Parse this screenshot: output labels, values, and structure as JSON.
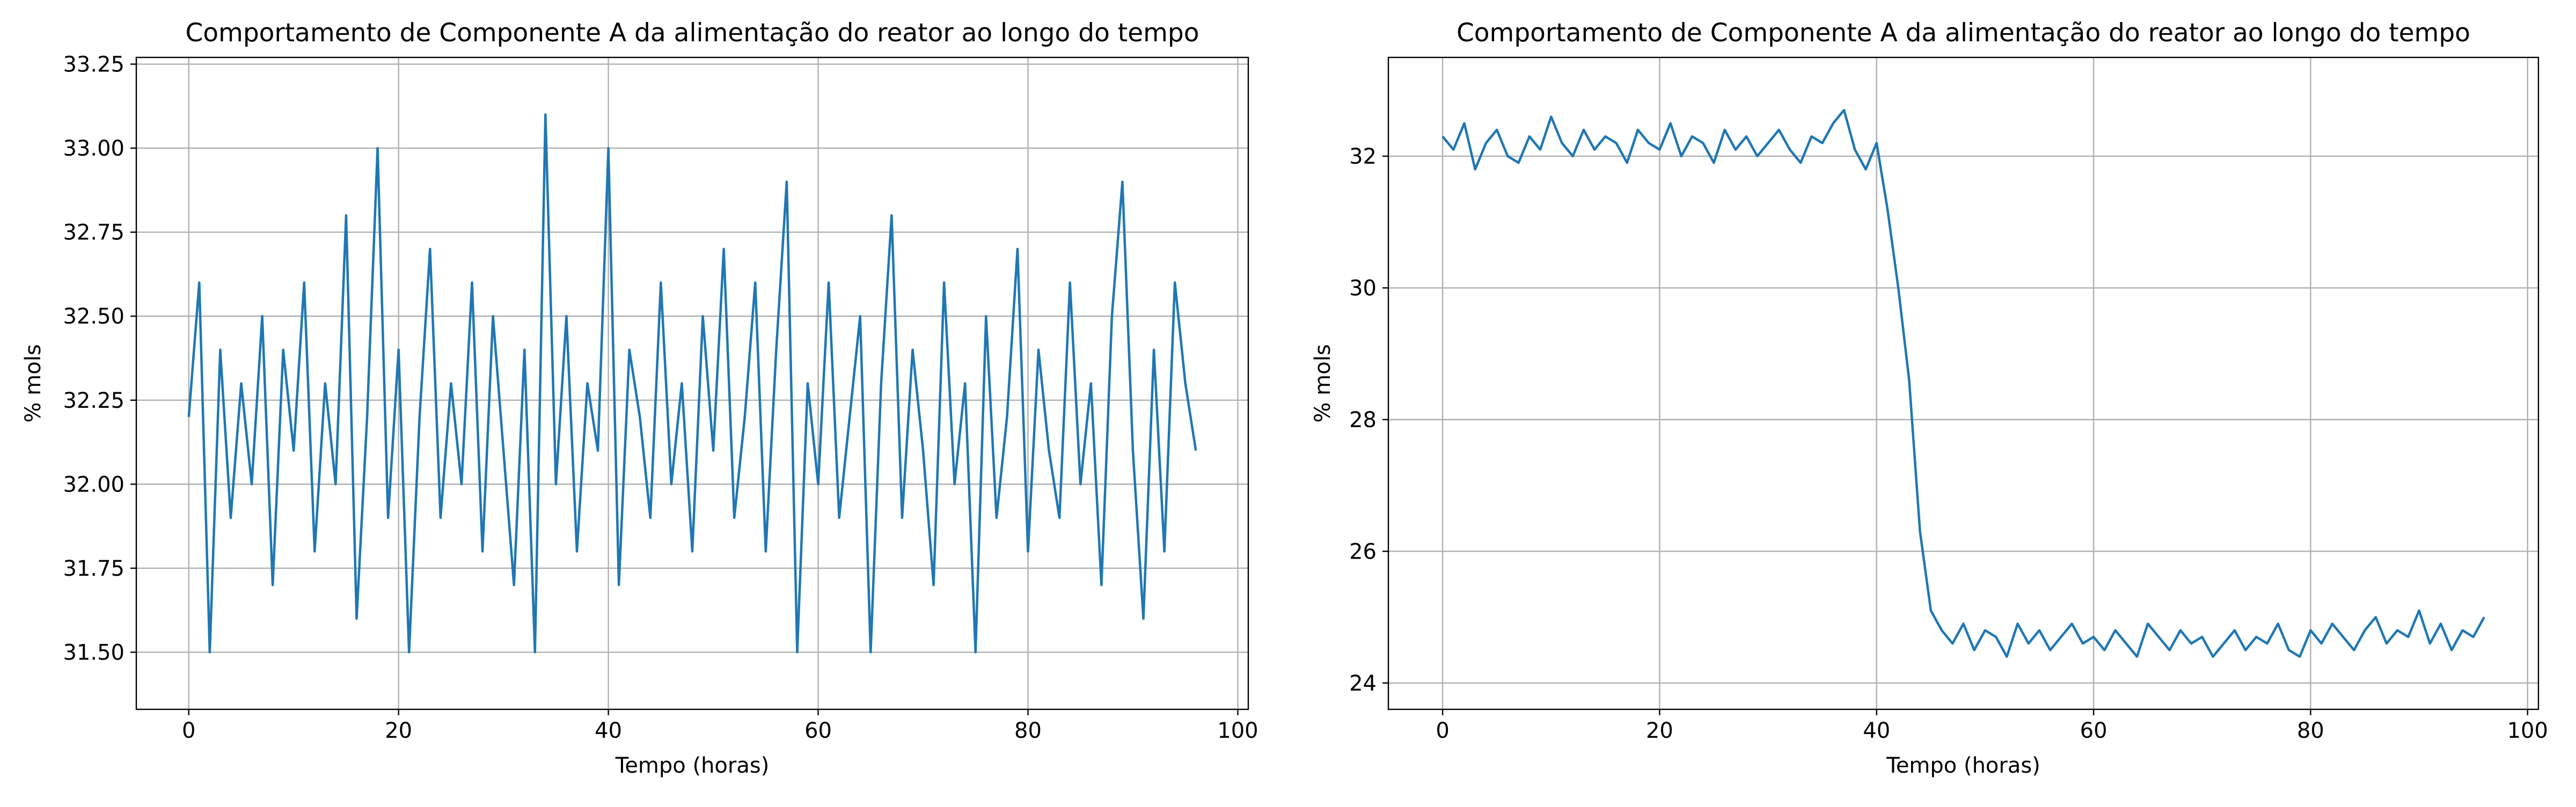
{
  "chart_data": [
    {
      "type": "line",
      "title": "Comportamento de Componente A da alimentação do reator ao longo do tempo",
      "xlabel": "Tempo (horas)",
      "ylabel": "% mols",
      "xlim": [
        -5,
        101
      ],
      "xticks": [
        0,
        20,
        40,
        60,
        80,
        100
      ],
      "ylim": [
        31.33,
        33.27
      ],
      "yticks": [
        {
          "value": 31.5,
          "label": "31.50"
        },
        {
          "value": 31.75,
          "label": "31.75"
        },
        {
          "value": 32,
          "label": "32.00"
        },
        {
          "value": 32.25,
          "label": "32.25"
        },
        {
          "value": 32.5,
          "label": "32.50"
        },
        {
          "value": 32.75,
          "label": "32.75"
        },
        {
          "value": 33,
          "label": "33.00"
        },
        {
          "value": 33.25,
          "label": "33.25"
        }
      ],
      "grid": true,
      "color": "#1f77b4",
      "x": [
        0,
        1,
        2,
        3,
        4,
        5,
        6,
        7,
        8,
        9,
        10,
        11,
        12,
        13,
        14,
        15,
        16,
        17,
        18,
        19,
        20,
        21,
        22,
        23,
        24,
        25,
        26,
        27,
        28,
        29,
        30,
        31,
        32,
        33,
        34,
        35,
        36,
        37,
        38,
        39,
        40,
        41,
        42,
        43,
        44,
        45,
        46,
        47,
        48,
        49,
        50,
        51,
        52,
        53,
        54,
        55,
        56,
        57,
        58,
        59,
        60,
        61,
        62,
        63,
        64,
        65,
        66,
        67,
        68,
        69,
        70,
        71,
        72,
        73,
        74,
        75,
        76,
        77,
        78,
        79,
        80,
        81,
        82,
        83,
        84,
        85,
        86,
        87,
        88,
        89,
        90,
        91,
        92,
        93,
        94,
        95,
        96
      ],
      "values": [
        32.2,
        32.6,
        31.5,
        32.4,
        31.9,
        32.3,
        32.0,
        32.5,
        31.7,
        32.4,
        32.1,
        32.6,
        31.8,
        32.3,
        32.0,
        32.8,
        31.6,
        32.2,
        33.0,
        31.9,
        32.4,
        31.5,
        32.2,
        32.7,
        31.9,
        32.3,
        32.0,
        32.6,
        31.8,
        32.5,
        32.1,
        31.7,
        32.4,
        31.5,
        33.1,
        32.0,
        32.5,
        31.8,
        32.3,
        32.1,
        33.0,
        31.7,
        32.4,
        32.2,
        31.9,
        32.6,
        32.0,
        32.3,
        31.8,
        32.5,
        32.1,
        32.7,
        31.9,
        32.2,
        32.6,
        31.8,
        32.4,
        32.9,
        31.5,
        32.3,
        32.0,
        32.6,
        31.9,
        32.2,
        32.5,
        31.5,
        32.3,
        32.8,
        31.9,
        32.4,
        32.1,
        31.7,
        32.6,
        32.0,
        32.3,
        31.5,
        32.5,
        31.9,
        32.2,
        32.7,
        31.8,
        32.4,
        32.1,
        31.9,
        32.6,
        32.0,
        32.3,
        31.7,
        32.5,
        32.9,
        32.1,
        31.6,
        32.4,
        31.8,
        32.6,
        32.3,
        32.1
      ]
    },
    {
      "type": "line",
      "title": "Comportamento de Componente A da alimentação do reator ao longo do tempo",
      "xlabel": "Tempo (horas)",
      "ylabel": "% mols",
      "xlim": [
        -5,
        101
      ],
      "xticks": [
        0,
        20,
        40,
        60,
        80,
        100
      ],
      "ylim": [
        23.6,
        33.5
      ],
      "yticks": [
        24,
        26,
        28,
        30,
        32
      ],
      "grid": true,
      "color": "#1f77b4",
      "x": [
        0,
        1,
        2,
        3,
        4,
        5,
        6,
        7,
        8,
        9,
        10,
        11,
        12,
        13,
        14,
        15,
        16,
        17,
        18,
        19,
        20,
        21,
        22,
        23,
        24,
        25,
        26,
        27,
        28,
        29,
        30,
        31,
        32,
        33,
        34,
        35,
        36,
        37,
        38,
        39,
        40,
        41,
        42,
        43,
        44,
        45,
        46,
        47,
        48,
        49,
        50,
        51,
        52,
        53,
        54,
        55,
        56,
        57,
        58,
        59,
        60,
        61,
        62,
        63,
        64,
        65,
        66,
        67,
        68,
        69,
        70,
        71,
        72,
        73,
        74,
        75,
        76,
        77,
        78,
        79,
        80,
        81,
        82,
        83,
        84,
        85,
        86,
        87,
        88,
        89,
        90,
        91,
        92,
        93,
        94,
        95,
        96
      ],
      "values": [
        32.3,
        32.1,
        32.5,
        31.8,
        32.2,
        32.4,
        32.0,
        31.9,
        32.3,
        32.1,
        32.6,
        32.2,
        32.0,
        32.4,
        32.1,
        32.3,
        32.2,
        31.9,
        32.4,
        32.2,
        32.1,
        32.5,
        32.0,
        32.3,
        32.2,
        31.9,
        32.4,
        32.1,
        32.3,
        32.0,
        32.2,
        32.4,
        32.1,
        31.9,
        32.3,
        32.2,
        32.5,
        32.7,
        32.1,
        31.8,
        32.2,
        31.2,
        30.0,
        28.6,
        26.3,
        25.1,
        24.8,
        24.6,
        24.9,
        24.5,
        24.8,
        24.7,
        24.4,
        24.9,
        24.6,
        24.8,
        24.5,
        24.7,
        24.9,
        24.6,
        24.7,
        24.5,
        24.8,
        24.6,
        24.4,
        24.9,
        24.7,
        24.5,
        24.8,
        24.6,
        24.7,
        24.4,
        24.6,
        24.8,
        24.5,
        24.7,
        24.6,
        24.9,
        24.5,
        24.4,
        24.8,
        24.6,
        24.9,
        24.7,
        24.5,
        24.8,
        25.0,
        24.6,
        24.8,
        24.7,
        25.1,
        24.6,
        24.9,
        24.5,
        24.8,
        24.7,
        25.0
      ]
    }
  ]
}
